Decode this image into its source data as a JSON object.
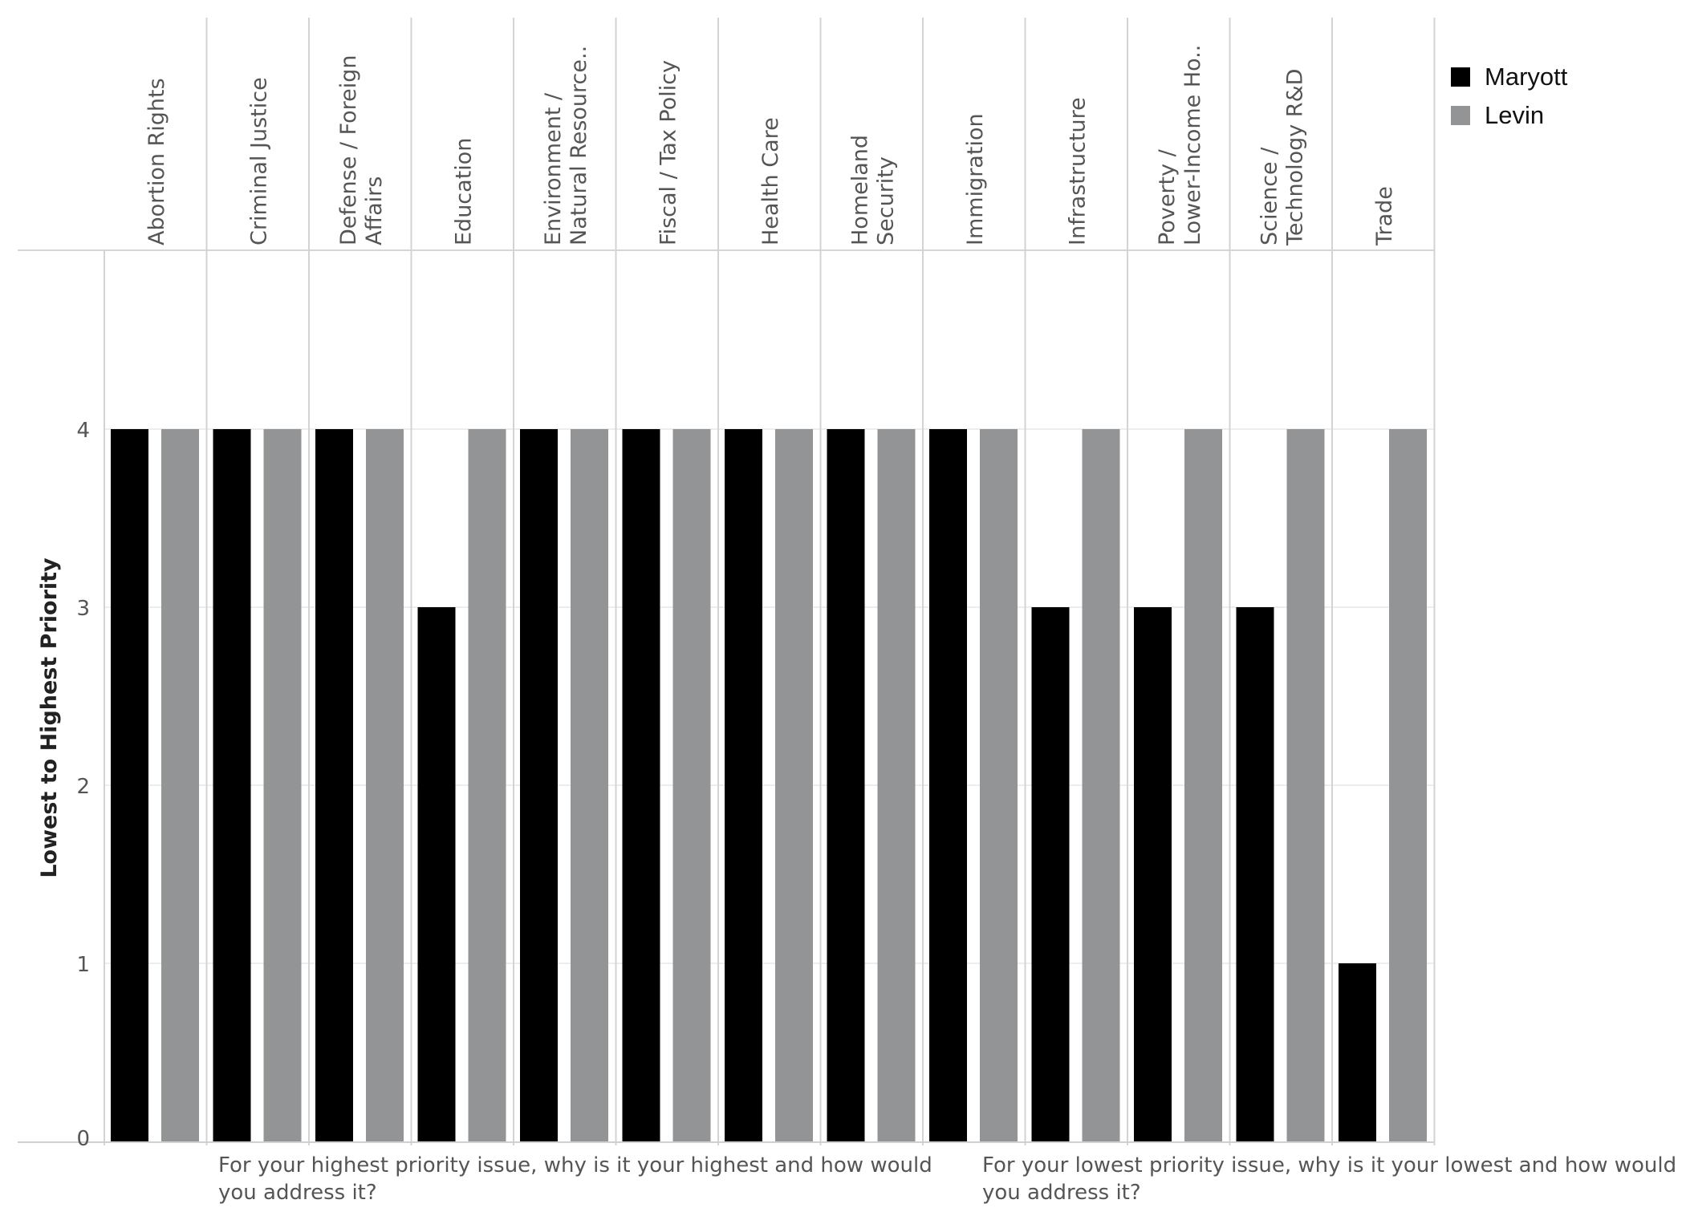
{
  "chart_data": {
    "type": "bar",
    "ylabel": "Lowest to Highest Priority",
    "ylim": [
      0,
      5
    ],
    "yticks": [
      0,
      1,
      2,
      3,
      4
    ],
    "grid": true,
    "legend_position": "top-right",
    "categories": [
      [
        "Abortion Rights"
      ],
      [
        "Criminal Justice"
      ],
      [
        "Defense / Foreign",
        "Affairs"
      ],
      [
        "Education"
      ],
      [
        "Environment /",
        "Natural Resource.."
      ],
      [
        "Fiscal / Tax Policy"
      ],
      [
        "Health Care"
      ],
      [
        "Homeland",
        "Security"
      ],
      [
        "Immigration"
      ],
      [
        "Infrastructure"
      ],
      [
        "Poverty /",
        "Lower-Income Ho.."
      ],
      [
        "Science /",
        "Technology R&D"
      ],
      [
        "Trade"
      ]
    ],
    "series": [
      {
        "name": "Maryott",
        "color": "#000000",
        "values": [
          4,
          4,
          4,
          3,
          4,
          4,
          4,
          4,
          4,
          3,
          3,
          3,
          1
        ]
      },
      {
        "name": "Levin",
        "color": "#939496",
        "values": [
          4,
          4,
          4,
          4,
          4,
          4,
          4,
          4,
          4,
          4,
          4,
          4,
          4
        ]
      }
    ]
  },
  "footer": {
    "left_question": "For your highest priority issue, why is it your highest and how would you address it?",
    "right_question": "For your lowest priority issue, why is it your lowest and how would you address it?"
  }
}
